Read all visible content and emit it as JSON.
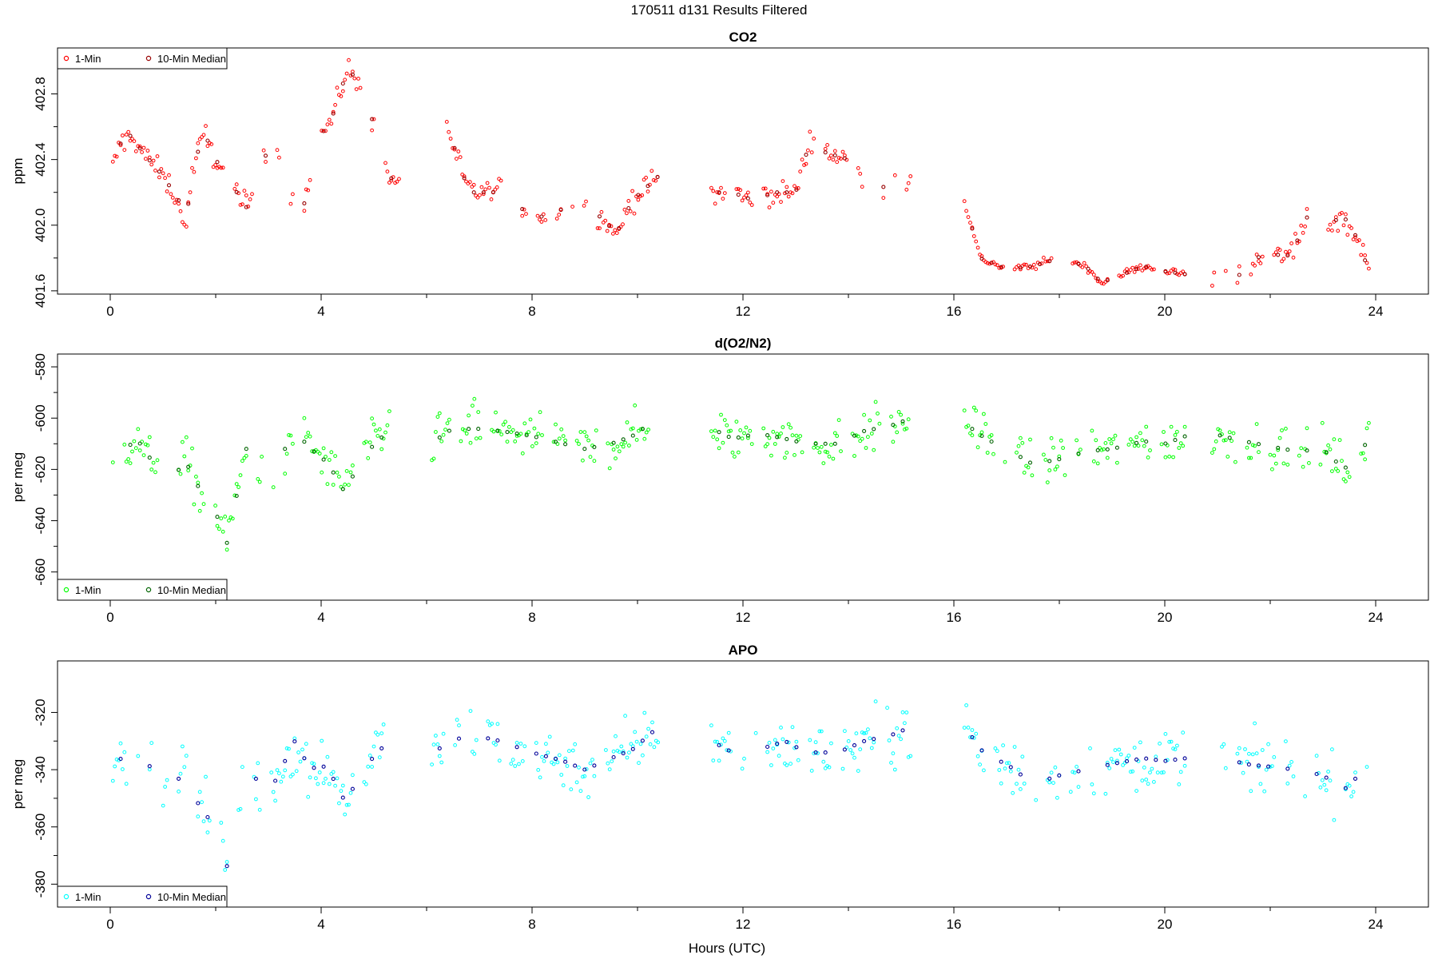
{
  "figure": {
    "title": "170511   d131   Results Filtered",
    "xlabel": "Hours (UTC)"
  },
  "chart_data": [
    {
      "type": "scatter",
      "title": "CO2",
      "xlabel": "",
      "ylabel": "ppm",
      "xlim": [
        -1.0,
        25.0
      ],
      "ylim": [
        401.58,
        403.08
      ],
      "xticks": [
        "0",
        "4",
        "8",
        "12",
        "16",
        "20",
        "24"
      ],
      "yticks": [
        "401.6",
        "402.0",
        "402.4",
        "402.8"
      ],
      "legend": {
        "position": "top-left",
        "entries": [
          "1-Min",
          "10-Min Median"
        ]
      },
      "colors": {
        "one_min": "#ff0000",
        "median": "#990000"
      },
      "series": [
        {
          "name": "1-Min",
          "anchors": [
            [
              0.05,
              402.35
            ],
            [
              0.2,
              402.5
            ],
            [
              0.4,
              402.55
            ],
            [
              0.6,
              402.45
            ],
            [
              1.0,
              402.3
            ],
            [
              1.3,
              402.15
            ],
            [
              1.4,
              401.95
            ],
            [
              1.6,
              402.4
            ],
            [
              1.8,
              402.55
            ],
            [
              2.0,
              402.4
            ],
            [
              2.2,
              402.3
            ],
            [
              2.6,
              402.1
            ],
            [
              2.9,
              402.4
            ],
            [
              3.1,
              402.5
            ],
            [
              3.35,
              402.3
            ],
            [
              3.6,
              402.0
            ],
            [
              3.9,
              402.5
            ],
            [
              4.2,
              402.65
            ],
            [
              4.5,
              402.95
            ],
            [
              4.8,
              402.85
            ],
            [
              5.0,
              402.6
            ],
            [
              5.3,
              402.3
            ],
            [
              5.5,
              402.2
            ]
          ],
          "anchors_b": [
            [
              6.2,
              402.8
            ],
            [
              6.5,
              402.5
            ],
            [
              6.8,
              402.2
            ],
            [
              7.4,
              402.2
            ],
            [
              7.8,
              402.1
            ],
            [
              8.2,
              402.05
            ],
            [
              8.6,
              402.1
            ],
            [
              9.0,
              402.1
            ],
            [
              9.3,
              402.05
            ],
            [
              9.6,
              401.95
            ],
            [
              9.9,
              402.15
            ],
            [
              10.4,
              402.3
            ]
          ],
          "anchors_c": [
            [
              11.4,
              402.2
            ],
            [
              11.8,
              402.2
            ],
            [
              12.2,
              402.15
            ],
            [
              12.6,
              402.2
            ],
            [
              13.0,
              402.2
            ],
            [
              13.3,
              402.55
            ],
            [
              13.5,
              402.45
            ],
            [
              14.0,
              402.4
            ],
            [
              14.4,
              402.2
            ],
            [
              14.8,
              402.25
            ],
            [
              15.2,
              402.3
            ]
          ],
          "anchors_d": [
            [
              16.2,
              402.15
            ],
            [
              16.5,
              401.8
            ],
            [
              17.0,
              401.73
            ],
            [
              17.5,
              401.75
            ],
            [
              18.0,
              401.8
            ],
            [
              18.5,
              401.75
            ],
            [
              18.8,
              401.65
            ],
            [
              19.2,
              401.7
            ],
            [
              19.6,
              401.75
            ],
            [
              20.0,
              401.72
            ],
            [
              20.4,
              401.7
            ]
          ],
          "anchors_e": [
            [
              20.9,
              401.68
            ],
            [
              21.5,
              401.7
            ],
            [
              21.9,
              401.85
            ],
            [
              22.3,
              401.8
            ],
            [
              22.6,
              401.95
            ],
            [
              22.8,
              402.15
            ],
            [
              23.0,
              402.0
            ],
            [
              23.4,
              402.05
            ],
            [
              23.6,
              401.95
            ],
            [
              23.9,
              401.7
            ]
          ]
        },
        {
          "name": "10-Min Median"
        }
      ]
    },
    {
      "type": "scatter",
      "title": "d(O2/N2)",
      "xlabel": "",
      "ylabel": "per meg",
      "xlim": [
        -1.0,
        25.0
      ],
      "ylim": [
        -671.0,
        -575.0
      ],
      "xticks": [
        "0",
        "4",
        "8",
        "12",
        "16",
        "20",
        "24"
      ],
      "yticks": [
        "-660",
        "-640",
        "-620",
        "-600",
        "-580"
      ],
      "legend": {
        "position": "bottom-left",
        "entries": [
          "1-Min",
          "10-Min Median"
        ]
      },
      "colors": {
        "one_min": "#00ff00",
        "median": "#006400"
      },
      "series": [
        {
          "name": "1-Min",
          "anchors": [
            [
              0.05,
              -615
            ],
            [
              0.3,
              -612
            ],
            [
              0.5,
              -608
            ],
            [
              0.9,
              -620
            ],
            [
              1.2,
              -625
            ],
            [
              1.4,
              -615
            ],
            [
              1.6,
              -625
            ],
            [
              1.9,
              -632
            ],
            [
              2.1,
              -642
            ],
            [
              2.2,
              -650
            ],
            [
              2.6,
              -610
            ],
            [
              2.9,
              -625
            ],
            [
              3.1,
              -620
            ],
            [
              3.5,
              -605
            ],
            [
              3.8,
              -612
            ],
            [
              4.0,
              -615
            ],
            [
              4.2,
              -620
            ],
            [
              4.4,
              -628
            ],
            [
              4.7,
              -620
            ],
            [
              5.0,
              -610
            ],
            [
              5.3,
              -605
            ],
            [
              5.5,
              -600
            ]
          ],
          "anchors_b": [
            [
              6.1,
              -610
            ],
            [
              6.4,
              -605
            ],
            [
              6.9,
              -604
            ],
            [
              7.4,
              -605
            ],
            [
              8.0,
              -607
            ],
            [
              8.6,
              -610
            ],
            [
              9.0,
              -612
            ],
            [
              9.5,
              -610
            ],
            [
              9.9,
              -607
            ],
            [
              10.4,
              -600
            ]
          ],
          "anchors_c": [
            [
              11.4,
              -604
            ],
            [
              11.8,
              -608
            ],
            [
              12.3,
              -606
            ],
            [
              12.8,
              -608
            ],
            [
              13.2,
              -610
            ],
            [
              13.8,
              -610
            ],
            [
              14.3,
              -605
            ],
            [
              14.8,
              -603
            ],
            [
              15.2,
              -600
            ]
          ],
          "anchors_d": [
            [
              16.2,
              -602
            ],
            [
              16.6,
              -608
            ],
            [
              17.0,
              -612
            ],
            [
              17.5,
              -618
            ],
            [
              18.0,
              -616
            ],
            [
              18.5,
              -613
            ],
            [
              19.0,
              -612
            ],
            [
              19.6,
              -609
            ],
            [
              20.0,
              -610
            ],
            [
              20.4,
              -607
            ]
          ],
          "anchors_e": [
            [
              20.9,
              -606
            ],
            [
              21.5,
              -609
            ],
            [
              22.0,
              -611
            ],
            [
              22.5,
              -613
            ],
            [
              23.0,
              -612
            ],
            [
              23.4,
              -620
            ],
            [
              23.9,
              -608
            ]
          ]
        },
        {
          "name": "10-Min Median"
        }
      ]
    },
    {
      "type": "scatter",
      "title": "APO",
      "xlabel": "",
      "ylabel": "per meg",
      "xlim": [
        -1.0,
        25.0
      ],
      "ylim": [
        -388.0,
        -302.0
      ],
      "xticks": [
        "0",
        "4",
        "8",
        "12",
        "16",
        "20",
        "24"
      ],
      "yticks": [
        "-380",
        "-360",
        "-340",
        "-320"
      ],
      "legend": {
        "position": "bottom-left",
        "entries": [
          "1-Min",
          "10-Min Median"
        ]
      },
      "colors": {
        "one_min": "#00ffff",
        "median": "#000099"
      },
      "series": [
        {
          "name": "1-Min",
          "anchors": [
            [
              0.05,
              -338
            ],
            [
              0.3,
              -335
            ],
            [
              0.5,
              -332
            ],
            [
              0.9,
              -343
            ],
            [
              1.2,
              -348
            ],
            [
              1.4,
              -338
            ],
            [
              1.6,
              -350
            ],
            [
              1.9,
              -358
            ],
            [
              2.1,
              -365
            ],
            [
              2.2,
              -375
            ],
            [
              2.6,
              -335
            ],
            [
              2.9,
              -350
            ],
            [
              3.1,
              -345
            ],
            [
              3.5,
              -330
            ],
            [
              3.8,
              -340
            ],
            [
              4.0,
              -338
            ],
            [
              4.2,
              -342
            ],
            [
              4.4,
              -350
            ],
            [
              4.7,
              -345
            ],
            [
              5.0,
              -335
            ],
            [
              5.3,
              -330
            ],
            [
              5.5,
              -325
            ]
          ],
          "anchors_b": [
            [
              6.1,
              -335
            ],
            [
              6.4,
              -330
            ],
            [
              6.9,
              -328
            ],
            [
              7.4,
              -330
            ],
            [
              8.0,
              -334
            ],
            [
              8.6,
              -337
            ],
            [
              9.0,
              -340
            ],
            [
              9.5,
              -336
            ],
            [
              9.9,
              -333
            ],
            [
              10.4,
              -325
            ]
          ],
          "anchors_c": [
            [
              11.4,
              -330
            ],
            [
              11.8,
              -334
            ],
            [
              12.3,
              -333
            ],
            [
              12.8,
              -330
            ],
            [
              13.2,
              -334
            ],
            [
              13.8,
              -334
            ],
            [
              14.3,
              -330
            ],
            [
              14.8,
              -328
            ],
            [
              15.2,
              -325
            ]
          ],
          "anchors_d": [
            [
              16.2,
              -325
            ],
            [
              16.6,
              -335
            ],
            [
              17.0,
              -338
            ],
            [
              17.5,
              -345
            ],
            [
              18.0,
              -342
            ],
            [
              18.5,
              -340
            ],
            [
              19.0,
              -338
            ],
            [
              19.6,
              -336
            ],
            [
              20.0,
              -337
            ],
            [
              20.4,
              -336
            ]
          ],
          "anchors_e": [
            [
              20.9,
              -334
            ],
            [
              21.5,
              -338
            ],
            [
              22.0,
              -339
            ],
            [
              22.5,
              -340
            ],
            [
              23.0,
              -342
            ],
            [
              23.4,
              -347
            ],
            [
              23.9,
              -338
            ]
          ]
        },
        {
          "name": "10-Min Median"
        }
      ]
    }
  ]
}
